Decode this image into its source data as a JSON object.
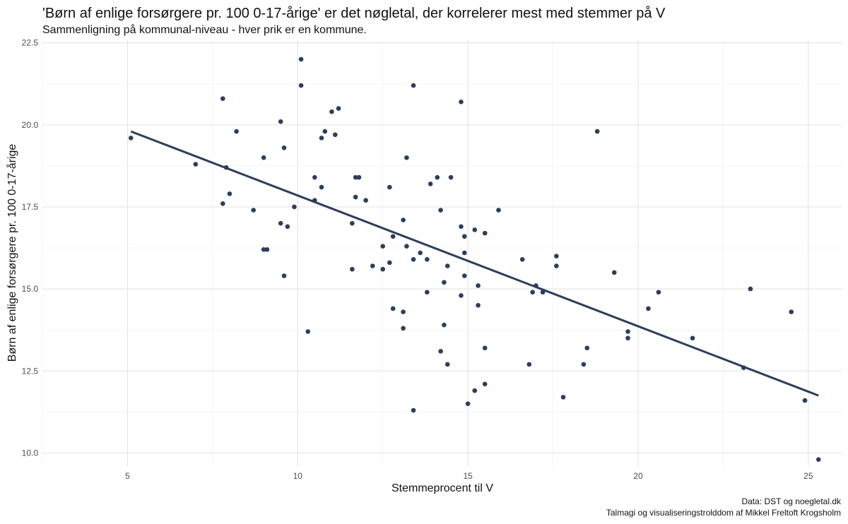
{
  "title": "'Børn af enlige forsørgere pr. 100 0-17-årige' er det nøgletal, der korrelerer mest med stemmer på V",
  "subtitle": "Sammenligning på kommunal-niveau - hver prik er en kommune.",
  "caption": {
    "line1": "Data: DST og noegletal.dk",
    "line2": "Talmagi og visualiseringstrolddom af Mikkel Freltoft Krogsholm"
  },
  "chart_data": {
    "type": "scatter",
    "xlabel": "Stemmeprocent til V",
    "ylabel": "Børn af enlige forsørgere pr. 100 0-17-årige",
    "xlim": [
      2.5,
      26.0
    ],
    "ylim": [
      9.6,
      22.6
    ],
    "x_ticks": [
      5,
      10,
      15,
      20,
      25
    ],
    "x_tick_labels": [
      "5",
      "10",
      "15",
      "20",
      "25"
    ],
    "y_ticks": [
      10.0,
      12.5,
      15.0,
      17.5,
      20.0,
      22.5
    ],
    "y_tick_labels": [
      "10.0",
      "12.5",
      "15.0",
      "17.5",
      "20.0",
      "22.5"
    ],
    "grid": true,
    "point_color": "#2c3e5a",
    "line_color": "#2c3e5a",
    "trend_line": {
      "x": [
        5.1,
        25.3
      ],
      "y": [
        19.8,
        11.75
      ]
    },
    "points": [
      [
        5.1,
        19.6
      ],
      [
        7.0,
        18.8
      ],
      [
        7.8,
        20.8
      ],
      [
        7.8,
        17.6
      ],
      [
        7.9,
        18.7
      ],
      [
        8.0,
        17.9
      ],
      [
        8.2,
        19.8
      ],
      [
        8.7,
        17.4
      ],
      [
        9.0,
        19.0
      ],
      [
        9.0,
        16.2
      ],
      [
        9.1,
        16.2
      ],
      [
        9.5,
        20.1
      ],
      [
        9.5,
        17.0
      ],
      [
        9.6,
        19.3
      ],
      [
        9.6,
        15.4
      ],
      [
        9.7,
        16.9
      ],
      [
        9.9,
        17.5
      ],
      [
        10.1,
        22.0
      ],
      [
        10.1,
        21.2
      ],
      [
        10.3,
        13.7
      ],
      [
        10.5,
        18.4
      ],
      [
        10.5,
        17.7
      ],
      [
        10.7,
        19.6
      ],
      [
        10.7,
        18.1
      ],
      [
        10.8,
        19.8
      ],
      [
        11.0,
        20.4
      ],
      [
        11.1,
        19.7
      ],
      [
        11.2,
        20.5
      ],
      [
        11.6,
        17.0
      ],
      [
        11.6,
        15.6
      ],
      [
        11.7,
        18.4
      ],
      [
        11.7,
        17.8
      ],
      [
        11.8,
        18.4
      ],
      [
        12.0,
        17.7
      ],
      [
        12.2,
        15.7
      ],
      [
        12.5,
        16.3
      ],
      [
        12.5,
        15.6
      ],
      [
        12.7,
        18.1
      ],
      [
        12.7,
        15.8
      ],
      [
        12.8,
        16.6
      ],
      [
        12.8,
        14.4
      ],
      [
        13.1,
        17.1
      ],
      [
        13.1,
        14.3
      ],
      [
        13.1,
        13.8
      ],
      [
        13.2,
        19.0
      ],
      [
        13.2,
        16.3
      ],
      [
        13.4,
        21.2
      ],
      [
        13.4,
        15.9
      ],
      [
        13.4,
        11.3
      ],
      [
        13.6,
        16.1
      ],
      [
        13.8,
        15.9
      ],
      [
        13.8,
        14.9
      ],
      [
        13.9,
        18.2
      ],
      [
        14.1,
        18.4
      ],
      [
        14.2,
        17.4
      ],
      [
        14.2,
        13.1
      ],
      [
        14.3,
        15.2
      ],
      [
        14.3,
        13.9
      ],
      [
        14.4,
        15.7
      ],
      [
        14.4,
        12.7
      ],
      [
        14.5,
        18.4
      ],
      [
        14.8,
        20.7
      ],
      [
        14.8,
        16.9
      ],
      [
        14.8,
        14.8
      ],
      [
        14.9,
        16.6
      ],
      [
        14.9,
        16.1
      ],
      [
        14.9,
        15.4
      ],
      [
        15.0,
        11.5
      ],
      [
        15.2,
        16.8
      ],
      [
        15.2,
        11.9
      ],
      [
        15.3,
        15.1
      ],
      [
        15.3,
        14.5
      ],
      [
        15.5,
        16.7
      ],
      [
        15.5,
        13.2
      ],
      [
        15.5,
        12.1
      ],
      [
        15.9,
        17.4
      ],
      [
        16.6,
        15.9
      ],
      [
        16.8,
        12.7
      ],
      [
        16.9,
        14.9
      ],
      [
        17.0,
        15.1
      ],
      [
        17.2,
        14.9
      ],
      [
        17.6,
        16.0
      ],
      [
        17.6,
        15.7
      ],
      [
        17.8,
        11.7
      ],
      [
        18.4,
        12.7
      ],
      [
        18.5,
        13.2
      ],
      [
        18.8,
        19.8
      ],
      [
        19.3,
        15.5
      ],
      [
        19.7,
        13.7
      ],
      [
        19.7,
        13.5
      ],
      [
        20.3,
        14.4
      ],
      [
        20.6,
        14.9
      ],
      [
        21.6,
        13.5
      ],
      [
        23.1,
        12.6
      ],
      [
        23.3,
        15.0
      ],
      [
        24.5,
        14.3
      ],
      [
        24.9,
        11.6
      ],
      [
        25.3,
        9.8
      ]
    ]
  }
}
